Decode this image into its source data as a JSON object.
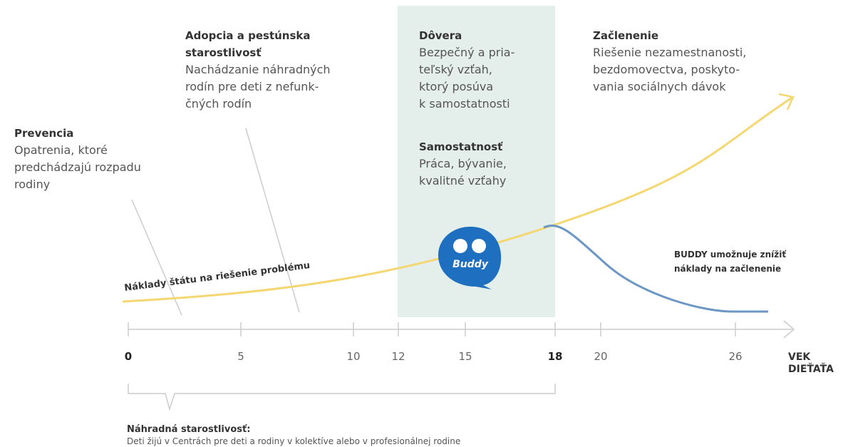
{
  "blocks": [
    {
      "title": "Prevencia",
      "lines": [
        "Opatrenia, ktoré",
        "predchádzajú rozpadu",
        "rodiny"
      ]
    },
    {
      "title": [
        "Adopcia a pestúnska",
        "starostlivosť"
      ],
      "lines": [
        "Nachádzanie náhradných",
        "rodín pre deti z nefunk-",
        "čných rodín"
      ]
    },
    {
      "title": "Dôvera",
      "lines": [
        "Bezpečný a pria-",
        "teľský vzťah,",
        "ktorý posúva",
        "k samostatnosti"
      ]
    },
    {
      "title": "Samostatnosť",
      "lines": [
        "Práca, bývanie,",
        "kvalitné vzťahy"
      ]
    },
    {
      "title": "Začlenenie",
      "lines": [
        "Riešenie nezamestnanosti,",
        "bezdomovectva, poskyto-",
        "vania sociálnych dávok"
      ]
    }
  ],
  "curve_label": "Náklady štátu na riešenie problému",
  "buddy_note": [
    "BUDDY umožnuje znížiť",
    "náklady na začlenenie"
  ],
  "logo": "Buddy",
  "axis": {
    "ticks": [
      "0",
      "5",
      "10",
      "12",
      "15",
      "18",
      "20",
      "26"
    ],
    "label": [
      "VEK",
      "DIEŤAŤA"
    ]
  },
  "note": {
    "title": "Náhradná starostlivosť:",
    "text": "Deti žijú v Centrách pre deti a rodiny v kolektíve alebo v profesionálnej rodine"
  }
}
